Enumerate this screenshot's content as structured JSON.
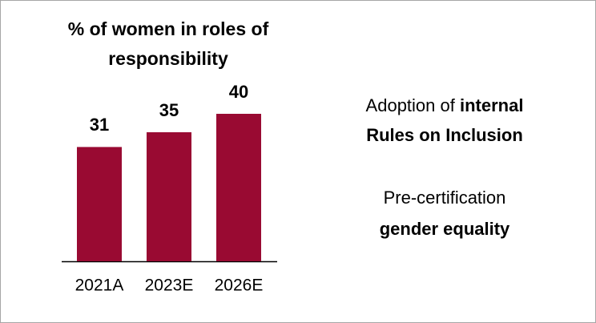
{
  "chart_data": {
    "type": "bar",
    "title": [
      "% of women in roles of",
      "responsibility"
    ],
    "categories": [
      "2021A",
      "2023E",
      "2026E"
    ],
    "values": [
      31,
      35,
      40
    ],
    "color": "#990a32"
  },
  "side_text": [
    [
      {
        "text": "Adoption of ",
        "bold": false
      },
      {
        "text": "internal",
        "bold": true
      }
    ],
    [
      {
        "text": "Rules on Inclusion",
        "bold": true
      }
    ],
    [
      {
        "text": "Pre-certification",
        "bold": false
      }
    ],
    [
      {
        "text": "gender equality",
        "bold": true
      }
    ]
  ]
}
